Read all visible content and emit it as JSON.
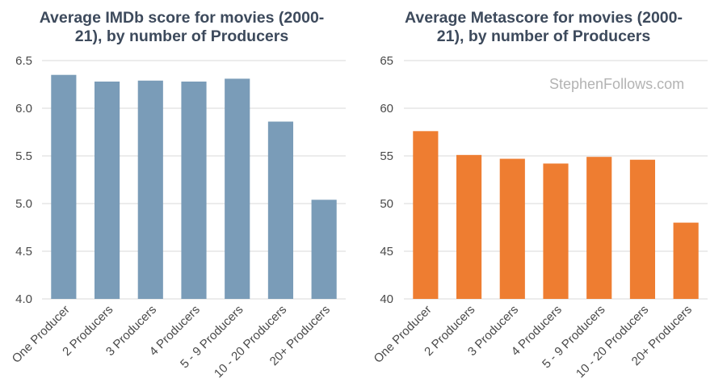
{
  "watermark": "StephenFollows.com",
  "chart_data": [
    {
      "type": "bar",
      "title_lines": [
        "Average IMDb score for movies (2000-",
        "21), by number of Producers"
      ],
      "categories": [
        "One Producer",
        "2 Producers",
        "3 Producers",
        "4 Producers",
        "5 - 9 Producers",
        "10 - 20 Producers",
        "20+ Producers"
      ],
      "values": [
        6.35,
        6.28,
        6.29,
        6.28,
        6.31,
        5.86,
        5.04
      ],
      "ylim": [
        4.0,
        6.5
      ],
      "yticks": [
        "4.0",
        "4.5",
        "5.0",
        "5.5",
        "6.0",
        "6.5"
      ],
      "color": "#7a9cb8",
      "grid": true
    },
    {
      "type": "bar",
      "title_lines": [
        "Average Metascore for movies (2000-",
        "21), by number of Producers"
      ],
      "categories": [
        "One Producer",
        "2 Producers",
        "3 Producers",
        "4 Producers",
        "5 - 9 Producers",
        "10 - 20 Producers",
        "20+ Producers"
      ],
      "values": [
        57.6,
        55.1,
        54.7,
        54.2,
        54.9,
        54.6,
        48.0
      ],
      "ylim": [
        40,
        65
      ],
      "yticks": [
        "40",
        "45",
        "50",
        "55",
        "60",
        "65"
      ],
      "color": "#ee7d31",
      "grid": true
    }
  ]
}
